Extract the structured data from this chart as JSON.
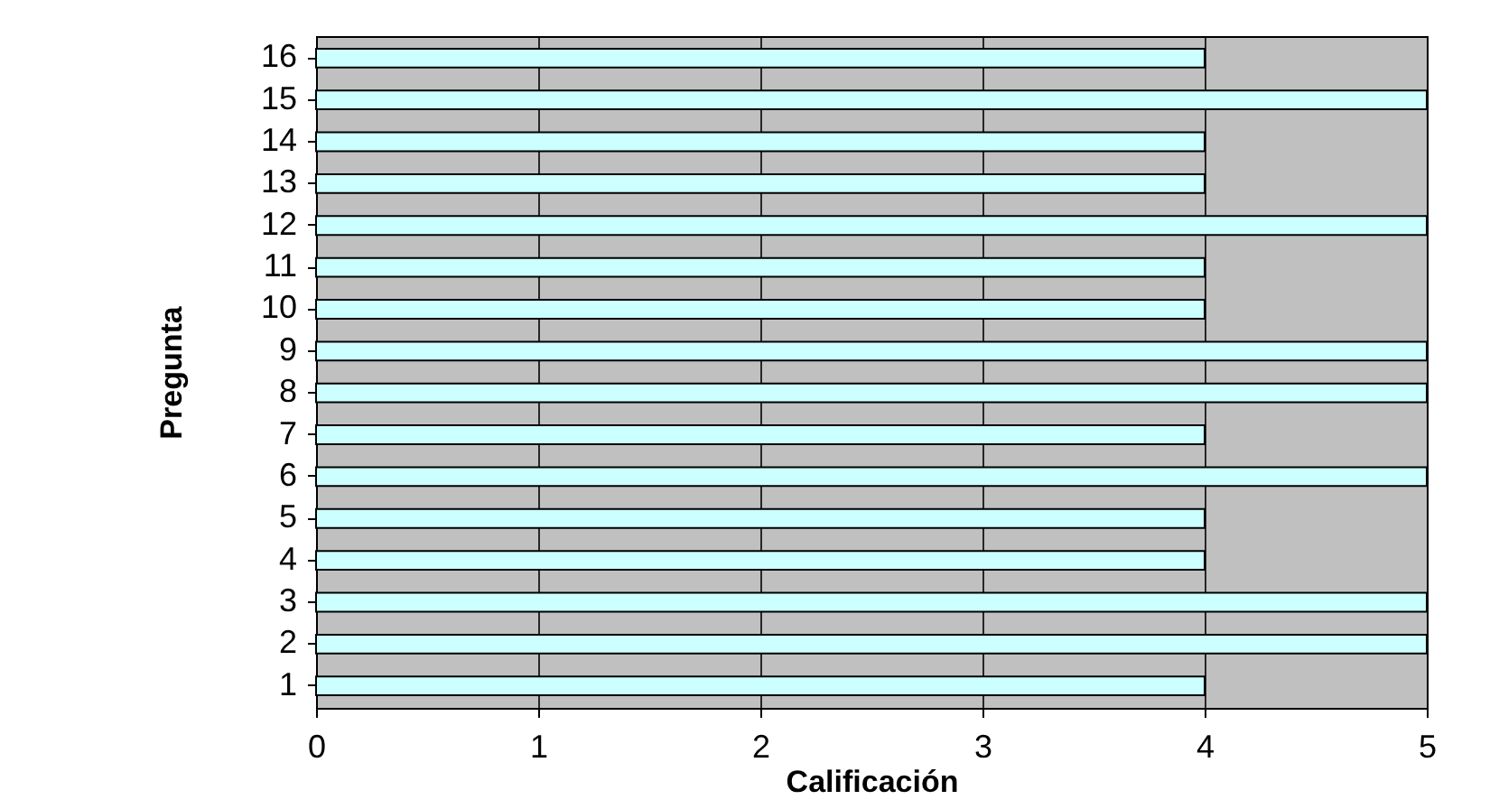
{
  "chart_data": {
    "type": "bar",
    "orientation": "horizontal",
    "xlabel": "Calificación",
    "ylabel": "Pregunta",
    "categories": [
      "16",
      "15",
      "14",
      "13",
      "12",
      "11",
      "10",
      "9",
      "8",
      "7",
      "6",
      "5",
      "4",
      "3",
      "2",
      "1"
    ],
    "values": [
      4,
      5,
      4,
      4,
      5,
      4,
      4,
      5,
      5,
      4,
      5,
      4,
      4,
      5,
      5,
      4
    ],
    "color": "#ccffff",
    "xlim": [
      0,
      5
    ],
    "xticks": [
      0,
      1,
      2,
      3,
      4,
      5
    ],
    "grid": "x"
  }
}
